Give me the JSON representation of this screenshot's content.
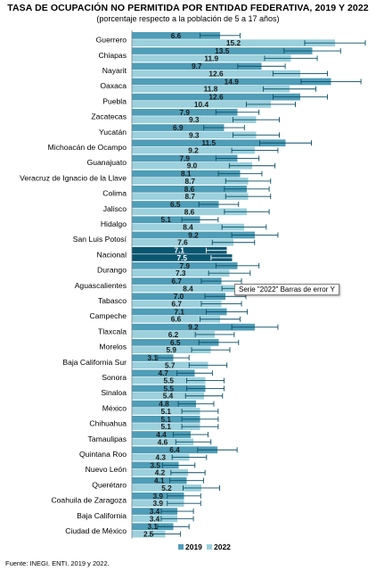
{
  "chart_data": {
    "type": "bar",
    "orientation": "horizontal",
    "title": "Tasa de ocupación no permitida por entidad federativa, 2019 y 2022",
    "subtitle": "(porcentaje respecto a la población de 5 a 17 años)",
    "categories": [
      "Guerrero",
      "Chiapas",
      "Nayarit",
      "Oaxaca",
      "Puebla",
      "Zacatecas",
      "Yucatán",
      "Michoacán de Ocampo",
      "Guanajuato",
      "Veracruz de Ignacio de la Llave",
      "Colima",
      "Jalisco",
      "Hidalgo",
      "San Luis Potosí",
      "Nacional",
      "Durango",
      "Aguascalientes",
      "Tabasco",
      "Campeche",
      "Tlaxcala",
      "Morelos",
      "Baja California Sur",
      "Sonora",
      "Sinaloa",
      "México",
      "Chihuahua",
      "Tamaulipas",
      "Quintana Roo",
      "Nuevo León",
      "Querétaro",
      "Coahuila de Zaragoza",
      "Baja California",
      "Ciudad de México"
    ],
    "highlight_category": "Nacional",
    "series": [
      {
        "name": "2019",
        "color": "#4f9db7",
        "highlight_color": "#0a5670",
        "values": [
          6.6,
          13.5,
          9.7,
          14.9,
          12.6,
          7.9,
          6.9,
          11.5,
          7.9,
          8.1,
          8.6,
          6.5,
          5.1,
          9.2,
          7.1,
          7.9,
          6.7,
          7.0,
          7.1,
          9.2,
          6.5,
          3.1,
          4.7,
          5.5,
          4.8,
          5.1,
          4.4,
          6.4,
          3.5,
          4.1,
          3.9,
          3.4,
          3.1
        ]
      },
      {
        "name": "2022",
        "color": "#9bd0dc",
        "highlight_color": "#0a5670",
        "values": [
          15.2,
          11.9,
          12.6,
          11.8,
          10.4,
          9.3,
          9.3,
          9.2,
          9.0,
          8.7,
          8.7,
          8.6,
          8.4,
          7.6,
          7.5,
          7.3,
          8.4,
          6.7,
          6.6,
          6.2,
          5.9,
          5.7,
          5.5,
          5.4,
          5.1,
          5.1,
          4.6,
          4.3,
          4.2,
          5.2,
          3.9,
          3.4,
          2.5
        ]
      }
    ],
    "error_bars": true,
    "xlim": [
      0,
      16
    ],
    "legend": [
      "2019",
      "2022"
    ],
    "legend_position": "bottom",
    "grid": false
  },
  "tooltip": "Serie \"2022\" Barras de error Y",
  "source": "Fuente: INEGI. ENTI. 2019 y 2022."
}
